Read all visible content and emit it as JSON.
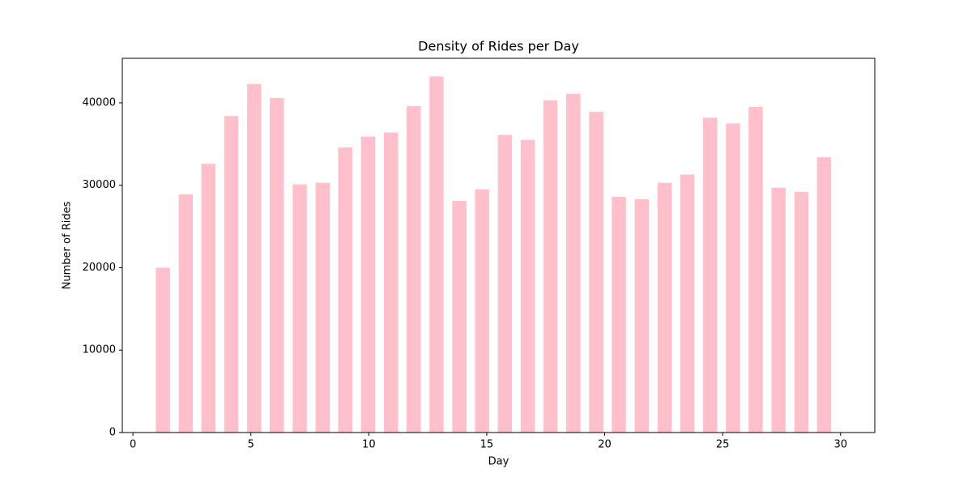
{
  "chart_data": {
    "type": "bar",
    "title": "Density of Rides per Day",
    "xlabel": "Day",
    "ylabel": "Number of Rides",
    "x": [
      1.27,
      2.24,
      3.2,
      4.17,
      5.14,
      6.1,
      7.07,
      8.04,
      9.0,
      9.97,
      10.94,
      11.9,
      12.87,
      13.84,
      14.8,
      15.77,
      16.74,
      17.7,
      18.67,
      19.64,
      20.6,
      21.57,
      22.54,
      23.5,
      24.47,
      25.44,
      26.4,
      27.37,
      28.34,
      29.3
    ],
    "values": [
      20000,
      28900,
      32600,
      38400,
      42300,
      40600,
      30100,
      30300,
      34600,
      35900,
      36400,
      39600,
      43200,
      28100,
      29500,
      36100,
      35500,
      40300,
      41100,
      38900,
      28600,
      28300,
      30300,
      31300,
      38200,
      37500,
      39500,
      29700,
      29200,
      33400
    ],
    "color": "#ffc0cb",
    "bar_width": 0.6,
    "xlim": [
      -0.45,
      31.45
    ],
    "xticks": [
      0,
      5,
      10,
      15,
      20,
      25,
      30
    ],
    "ylim": [
      0,
      45400
    ],
    "yticks": [
      0,
      10000,
      20000,
      30000,
      40000,
      50000
    ],
    "grid": false
  }
}
